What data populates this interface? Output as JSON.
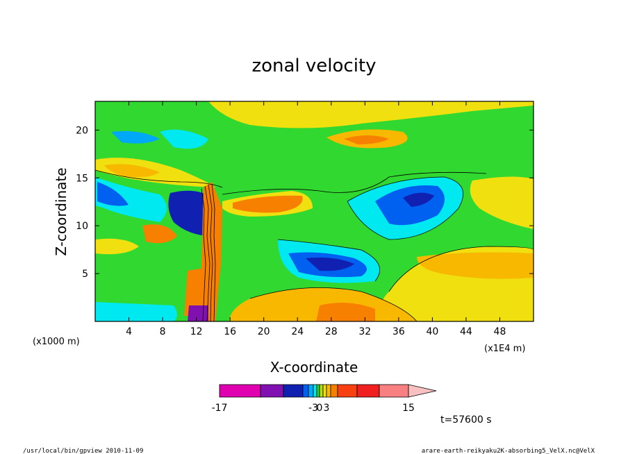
{
  "chart_data": {
    "type": "heatmap",
    "title": "zonal velocity",
    "xlabel": "X-coordinate",
    "ylabel": "Z-coordinate",
    "x_unit_left": "(x1000 m)",
    "x_unit_right": "(x1E4 m)",
    "xlim": [
      0,
      52
    ],
    "ylim": [
      0,
      23
    ],
    "xticks": [
      "4",
      "8",
      "12",
      "16",
      "20",
      "24",
      "28",
      "32",
      "36",
      "40",
      "44",
      "48"
    ],
    "yticks": [
      "5",
      "10",
      "15",
      "20"
    ],
    "colorbar": {
      "levels": [
        -17,
        -13,
        -9,
        -7,
        -5,
        -3,
        -1,
        0,
        1,
        3,
        5,
        7,
        9,
        13,
        15,
        17
      ],
      "colors": [
        "#e000b0",
        "#8010b0",
        "#1020b0",
        "#0060f0",
        "#00a8f8",
        "#00e8f0",
        "#30d830",
        "#b0e010",
        "#f0e010",
        "#f8b800",
        "#f88000",
        "#f84010",
        "#f02020",
        "#f88080",
        "#f8c0c0"
      ],
      "tick_labels": [
        "-17",
        "-3",
        "0",
        "3",
        "15"
      ]
    },
    "time_label": "t=57600 s"
  },
  "footer": {
    "left": "/usr/local/bin/gpview  2010-11-09",
    "right": "arare-earth-reikyaku2K-absorbing5_VelX.nc@VelX"
  }
}
